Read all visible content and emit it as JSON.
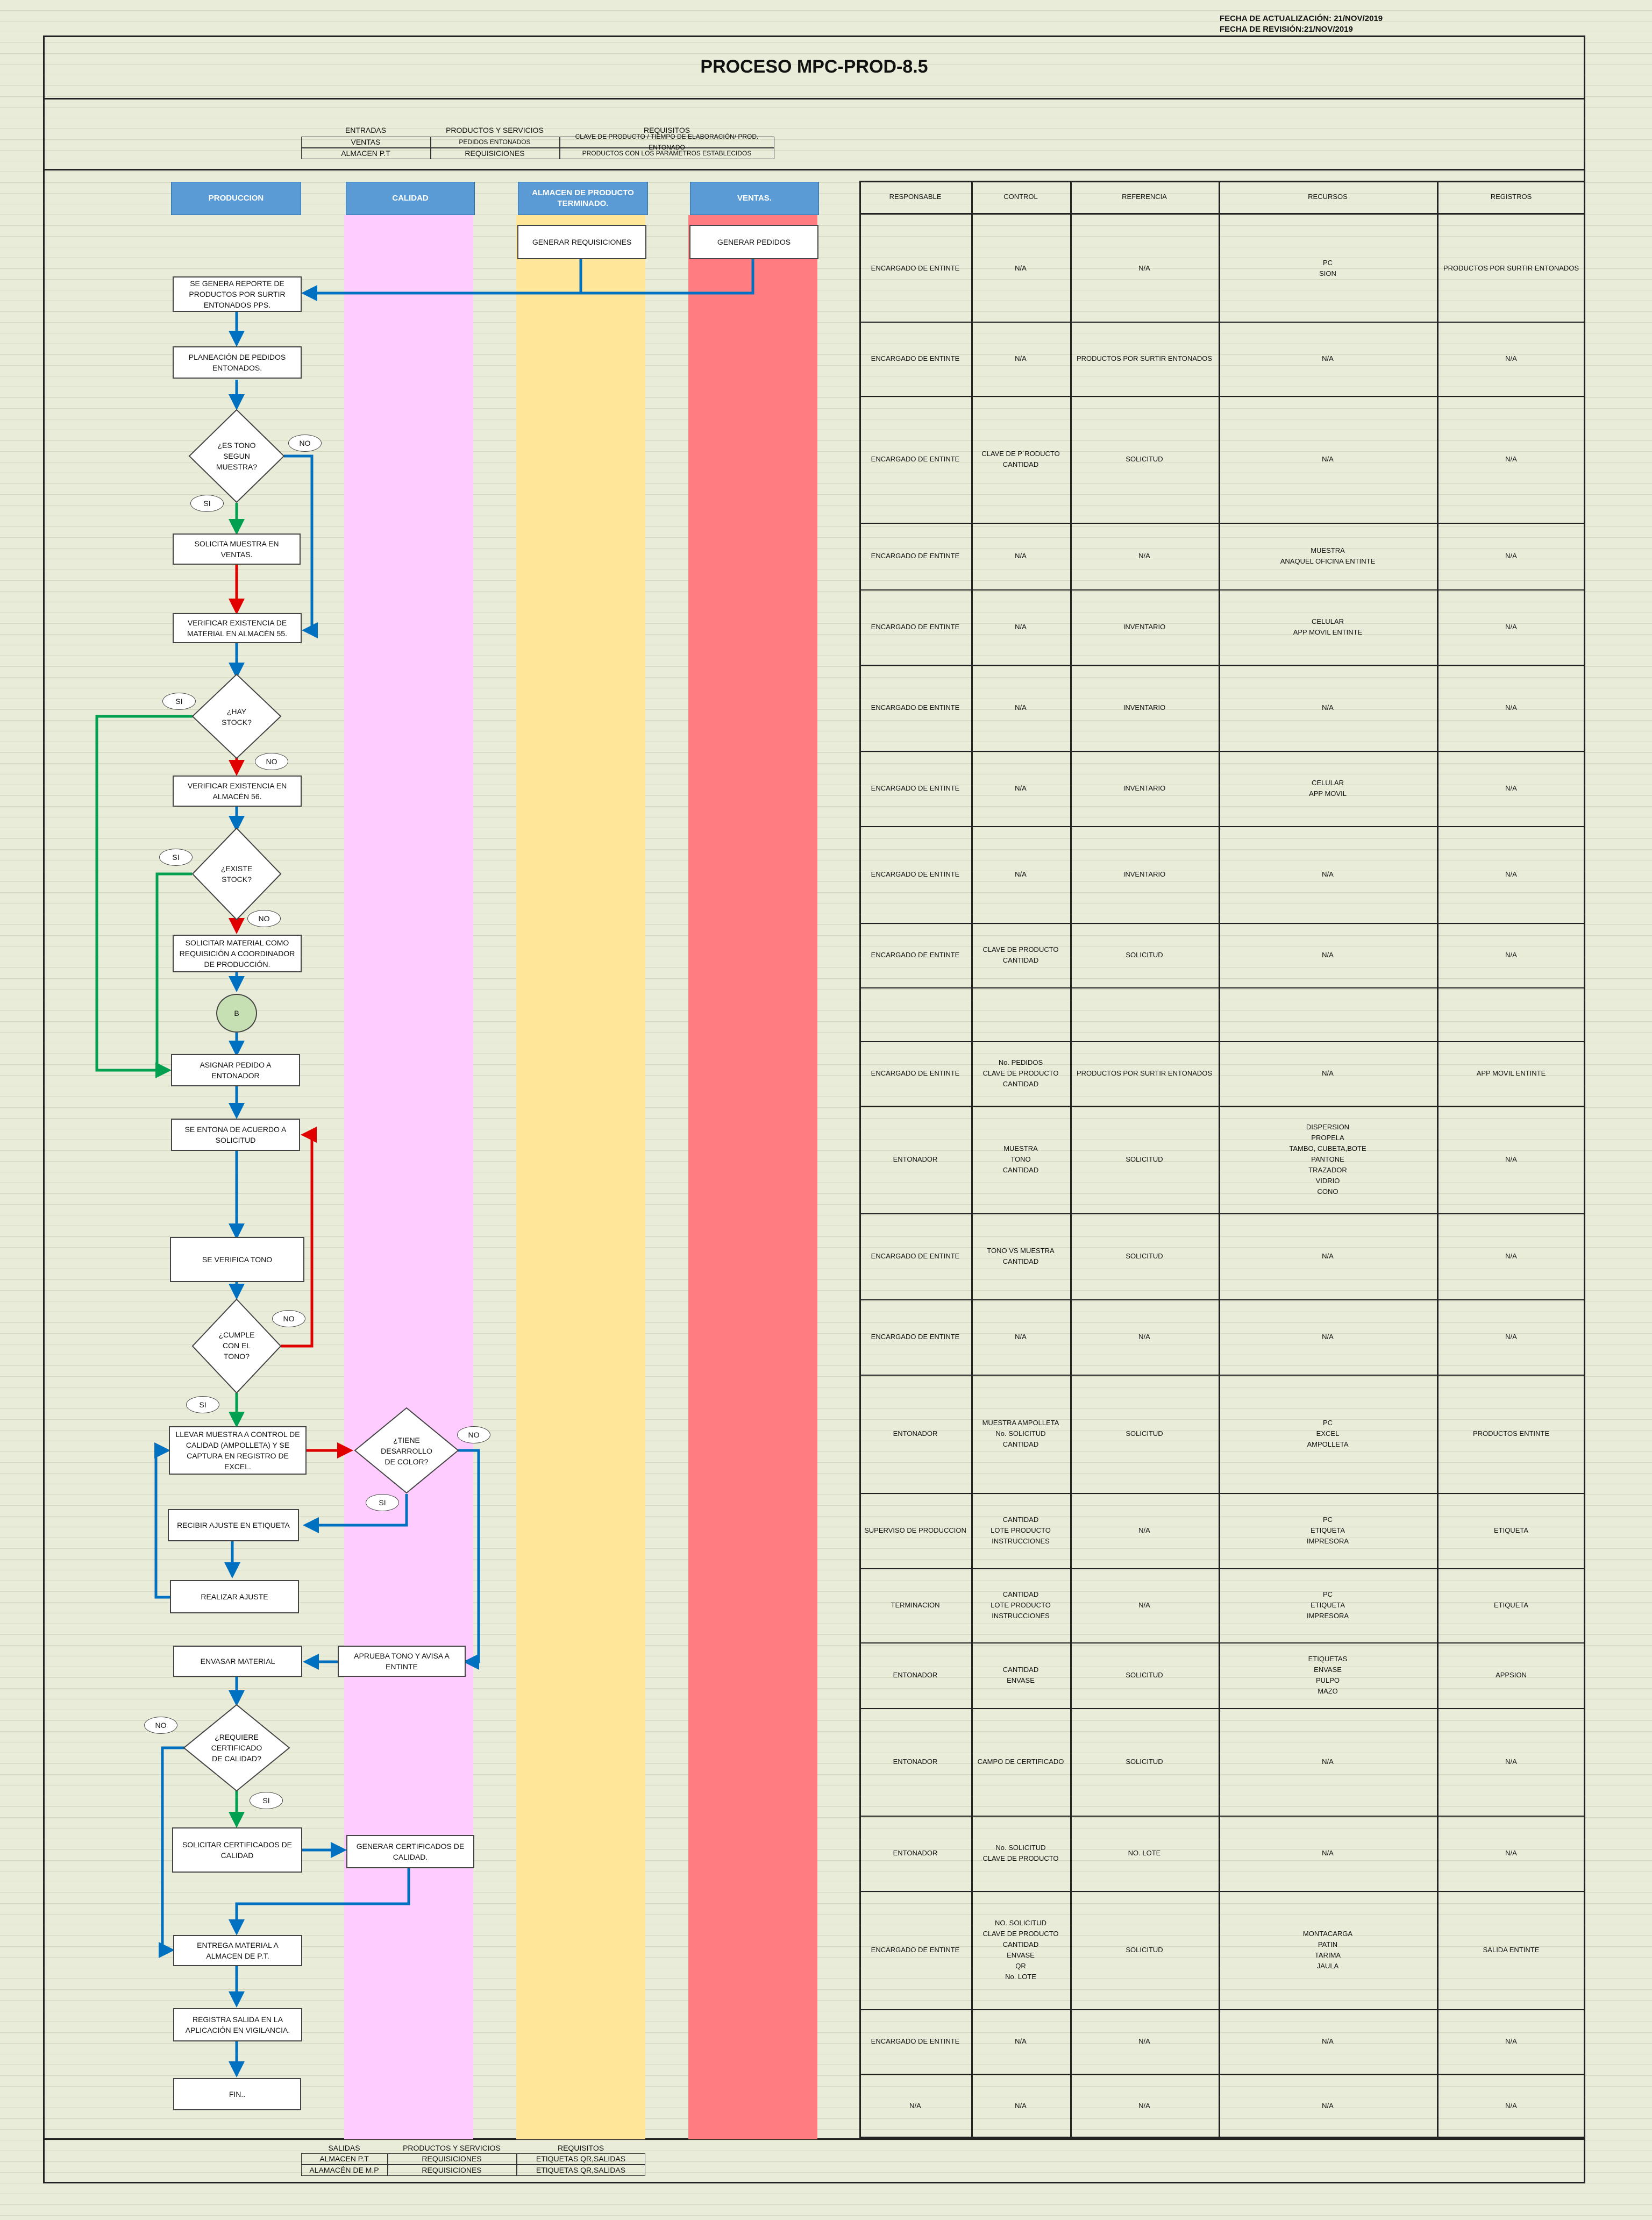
{
  "header": {
    "update_date": "FECHA DE ACTUALIZACIÓN: 21/NOV/2019",
    "review_date": "FECHA DE REVISIÓN:21/NOV/2019",
    "title": "PROCESO MPC-PROD-8.5"
  },
  "inputs": {
    "headers": [
      "ENTRADAS",
      "PRODUCTOS Y SERVICIOS",
      "REQUISITOS"
    ],
    "rows": [
      [
        "VENTAS",
        "PEDIDOS ENTONADOS",
        "CLAVE DE PRODUCTO / TIEMPO DE ELABORACIÓN/ PROD. ENTONADO"
      ],
      [
        "ALMACEN P.T",
        "REQUISICIONES",
        "PRODUCTOS CON LOS PARAMETROS ESTABLECIDOS"
      ]
    ]
  },
  "outputs": {
    "headers": [
      "SALIDAS",
      "PRODUCTOS Y SERVICIOS",
      "REQUISITOS"
    ],
    "rows": [
      [
        "ALMACEN P.T",
        "REQUISICIONES",
        "ETIQUETAS QR,SALIDAS"
      ],
      [
        "ALAMACÉN DE M.P",
        "REQUISICIONES",
        "ETIQUETAS QR,SALIDAS"
      ]
    ]
  },
  "lanes": {
    "produccion": "PRODUCCION",
    "calidad": "CALIDAD",
    "almacen": "ALMACEN DE PRODUCTO TERMINADO.",
    "ventas": "VENTAS."
  },
  "colors": {
    "lane_header": "#5b9bd5",
    "calidad": "#ffccff",
    "almacen": "#ffe699",
    "ventas": "#ff7c80",
    "flow_blue": "#0070c0",
    "flow_red": "#e00000",
    "flow_green": "#00a050",
    "connector_fill": "#c6e0b4"
  },
  "flow": {
    "generar_requisiciones": "GENERAR REQUISICIONES",
    "generar_pedidos": "GENERAR PEDIDOS",
    "reporte": "SE GENERA REPORTE DE PRODUCTOS POR SURTIR ENTONADOS PPS.",
    "planeacion": "PLANEACIÓN DE PEDIDOS ENTONADOS.",
    "d_tono": "¿ES TONO SEGUN MUESTRA?",
    "solicita_muestra": "SOLICITA MUESTRA EN VENTAS.",
    "verificar_55": "VERIFICAR EXISTENCIA DE MATERIAL EN ALMACÉN 55.",
    "d_stock": "¿HAY STOCK?",
    "verificar_56": "VERIFICAR EXISTENCIA EN ALMACÉN 56.",
    "d_existe": "¿EXISTE STOCK?",
    "solicitar_material": "SOLICITAR MATERIAL COMO REQUISICIÓN A COORDINADOR DE PRODUCCIÓN.",
    "connector": "B",
    "asignar": "ASIGNAR PEDIDO A ENTONADOR",
    "entona": "SE ENTONA DE ACUERDO A SOLICITUD",
    "verifica": "SE VERIFICA TONO",
    "d_cumple": "¿CUMPLE CON EL TONO?",
    "llevar": "LLEVAR MUESTRA A CONTROL DE CALIDAD (AMPOLLETA) Y SE CAPTURA EN REGISTRO DE EXCEL.",
    "d_desarrollo": "¿TIENE DESARROLLO DE COLOR?",
    "recibir": "RECIBIR AJUSTE EN ETIQUETA",
    "realizar": "REALIZAR AJUSTE",
    "aprueba": "APRUEBA TONO Y AVISA A ENTINTE",
    "envasar": "ENVASAR MATERIAL",
    "d_certificado": "¿REQUIERE CERTIFICADO DE CALIDAD?",
    "solicitar_cert": "SOLICITAR CERTIFICADOS DE CALIDAD",
    "generar_cert": "GENERAR CERTIFICADOS DE CALIDAD.",
    "entrega": "ENTREGA MATERIAL A ALMACEN DE P.T.",
    "registra": "REGISTRA SALIDA EN LA APLICACIÓN EN VIGILANCIA.",
    "fin": "FIN..",
    "yes": "SI",
    "no": "NO"
  },
  "table": {
    "headers": [
      "RESPONSABLE",
      "CONTROL",
      "REFERENCIA",
      "RECURSOS",
      "REGISTROS"
    ],
    "rows": [
      [
        "ENCARGADO DE ENTINTE",
        "N/A",
        "N/A",
        "PC\nSION",
        "PRODUCTOS POR SURTIR ENTONADOS"
      ],
      [
        "ENCARGADO DE ENTINTE",
        "N/A",
        "PRODUCTOS POR SURTIR ENTONADOS",
        "N/A",
        "N/A"
      ],
      [
        "ENCARGADO DE ENTINTE",
        "CLAVE DE P´RODUCTO\nCANTIDAD",
        "SOLICITUD",
        "N/A",
        "N/A"
      ],
      [
        "ENCARGADO DE ENTINTE",
        "N/A",
        "N/A",
        "MUESTRA\nANAQUEL OFICINA ENTINTE",
        "N/A"
      ],
      [
        "ENCARGADO DE ENTINTE",
        "N/A",
        "INVENTARIO",
        "CELULAR\nAPP MOVIL ENTINTE",
        "N/A"
      ],
      [
        "ENCARGADO DE ENTINTE",
        "N/A",
        "INVENTARIO",
        "N/A",
        "N/A"
      ],
      [
        "ENCARGADO DE ENTINTE",
        "N/A",
        "INVENTARIO",
        "CELULAR\nAPP MOVIL",
        "N/A"
      ],
      [
        "ENCARGADO DE ENTINTE",
        "N/A",
        "INVENTARIO",
        "N/A",
        "N/A"
      ],
      [
        "ENCARGADO DE ENTINTE",
        "CLAVE DE PRODUCTO\nCANTIDAD",
        "SOLICITUD",
        "N/A",
        "N/A"
      ],
      [
        "",
        "",
        "",
        "",
        ""
      ],
      [
        "ENCARGADO DE ENTINTE",
        "No. PEDIDOS\nCLAVE DE PRODUCTO\nCANTIDAD",
        "PRODUCTOS POR SURTIR ENTONADOS",
        "N/A",
        "APP MOVIL ENTINTE"
      ],
      [
        "ENTONADOR",
        "MUESTRA\nTONO\nCANTIDAD",
        "SOLICITUD",
        "DISPERSION\nPROPELA\nTAMBO, CUBETA,BOTE\nPANTONE\nTRAZADOR\nVIDRIO\nCONO",
        "N/A"
      ],
      [
        "ENCARGADO DE ENTINTE",
        "TONO VS MUESTRA\nCANTIDAD",
        "SOLICITUD",
        "N/A",
        "N/A"
      ],
      [
        "ENCARGADO DE ENTINTE",
        "N/A",
        "N/A",
        "N/A",
        "N/A"
      ],
      [
        "ENTONADOR",
        "MUESTRA AMPOLLETA\nNo. SOLICITUD\nCANTIDAD",
        "SOLICITUD",
        "PC\nEXCEL\nAMPOLLETA",
        "PRODUCTOS ENTINTE"
      ],
      [
        "SUPERVISO DE PRODUCCION",
        "CANTIDAD\nLOTE PRODUCTO\nINSTRUCCIONES",
        "N/A",
        "PC\nETIQUETA\nIMPRESORA",
        "ETIQUETA"
      ],
      [
        "TERMINACION",
        "CANTIDAD\nLOTE PRODUCTO\nINSTRUCCIONES",
        "N/A",
        "PC\nETIQUETA\nIMPRESORA",
        "ETIQUETA"
      ],
      [
        "ENTONADOR",
        "CANTIDAD\nENVASE",
        "SOLICITUD",
        "ETIQUETAS\nENVASE\nPULPO\nMAZO",
        "APPSION"
      ],
      [
        "ENTONADOR",
        "CAMPO DE CERTIFICADO",
        "SOLICITUD",
        "N/A",
        "N/A"
      ],
      [
        "ENTONADOR",
        "No. SOLICITUD\nCLAVE DE PRODUCTO",
        "NO. LOTE",
        "N/A",
        "N/A"
      ],
      [
        "ENCARGADO DE ENTINTE",
        "NO. SOLICITUD\nCLAVE DE PRODUCTO\nCANTIDAD\nENVASE\nQR\nNo. LOTE",
        "SOLICITUD",
        "MONTACARGA\nPATIN\nTARIMA\nJAULA",
        "SALIDA ENTINTE"
      ],
      [
        "ENCARGADO DE ENTINTE",
        "N/A",
        "N/A",
        "N/A",
        "N/A"
      ],
      [
        "N/A",
        "N/A",
        "N/A",
        "N/A",
        "N/A"
      ]
    ]
  }
}
